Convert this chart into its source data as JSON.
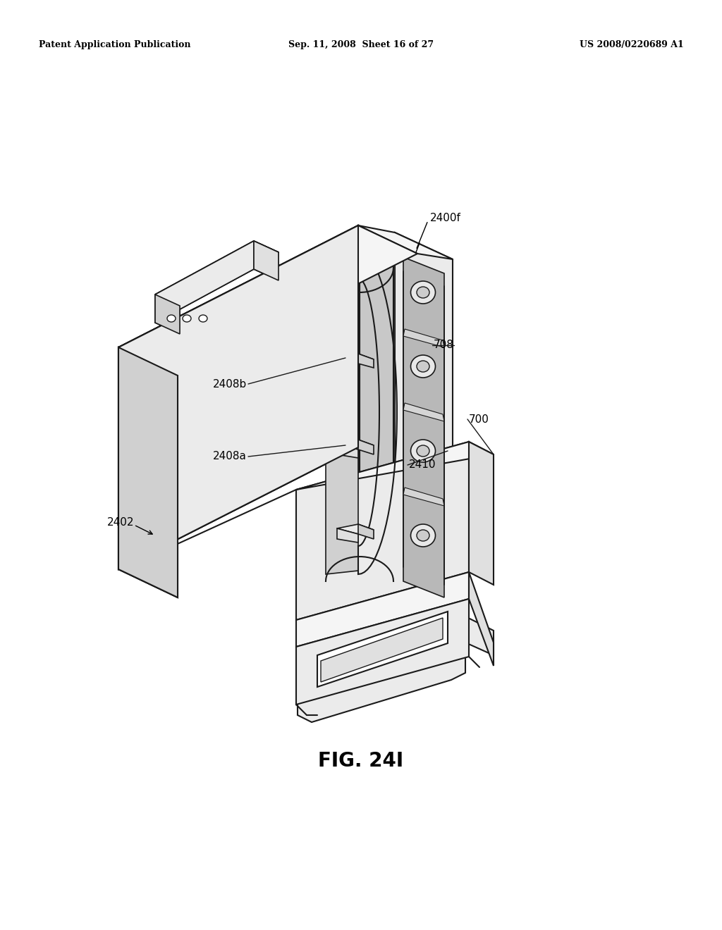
{
  "background_color": "#ffffff",
  "header_left": "Patent Application Publication",
  "header_center": "Sep. 11, 2008  Sheet 16 of 27",
  "header_right": "US 2008/0220689 A1",
  "figure_label": "FIG. 24I",
  "line_color": "#1a1a1a",
  "fill_top": "#f5f5f5",
  "fill_front": "#ebebeb",
  "fill_right": "#e0e0e0",
  "fill_dark": "#d0d0d0",
  "fill_white": "#ffffff"
}
